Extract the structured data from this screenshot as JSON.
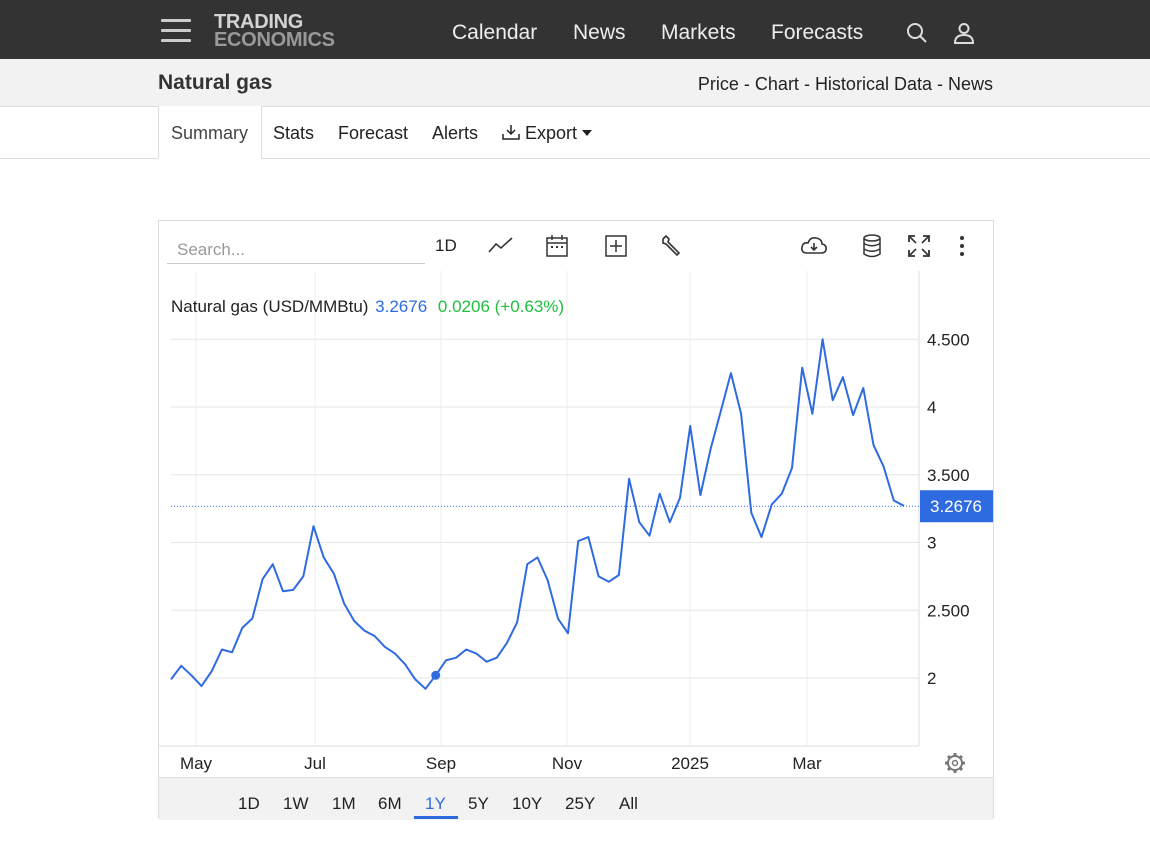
{
  "header": {
    "logo_line1": "TRADING",
    "logo_line2": "ECONOMICS",
    "nav": [
      "Calendar",
      "News",
      "Markets",
      "Forecasts"
    ]
  },
  "page": {
    "title": "Natural gas",
    "subnav": [
      "Price",
      "Chart",
      "Historical Data",
      "News"
    ],
    "separator": " - "
  },
  "tabs": [
    "Summary",
    "Stats",
    "Forecast",
    "Alerts",
    "Export"
  ],
  "toolbar": {
    "search_placeholder": "Search...",
    "interval": "1D"
  },
  "legend": {
    "name": "Natural gas (USD/MMBtu)",
    "price": "3.2676",
    "change": "0.0206 (+0.63%)"
  },
  "colors": {
    "line": "#2f6be0",
    "up": "#1fbf3f",
    "header_bg": "#333333"
  },
  "range_buttons": [
    "1D",
    "1W",
    "1M",
    "6M",
    "1Y",
    "5Y",
    "10Y",
    "25Y",
    "All"
  ],
  "range_active": "1Y",
  "chart_data": {
    "type": "line",
    "title": "Natural gas (USD/MMBtu)",
    "x_tick_labels": [
      "May",
      "Jul",
      "Sep",
      "Nov",
      "2025",
      "Mar"
    ],
    "y_tick_labels": [
      "4.500",
      "4",
      "3.500",
      "3",
      "2.500",
      "2"
    ],
    "ylim": [
      1.5,
      4.9
    ],
    "last_value_label": "3.2676",
    "grid": true,
    "series": [
      {
        "values": [
          1.99,
          2.09,
          2.02,
          1.94,
          2.05,
          2.21,
          2.19,
          2.37,
          2.44,
          2.73,
          2.84,
          2.64,
          2.65,
          2.75,
          3.12,
          2.89,
          2.77,
          2.55,
          2.42,
          2.35,
          2.31,
          2.23,
          2.18,
          2.1,
          1.99,
          1.92,
          2.02,
          2.13,
          2.15,
          2.21,
          2.18,
          2.12,
          2.15,
          2.26,
          2.41,
          2.84,
          2.89,
          2.72,
          2.44,
          2.33,
          3.01,
          3.04,
          2.75,
          2.71,
          2.76,
          3.47,
          3.15,
          3.05,
          3.36,
          3.15,
          3.33,
          3.86,
          3.35,
          3.69,
          3.97,
          4.25,
          3.95,
          3.22,
          3.04,
          3.28,
          3.36,
          3.55,
          4.29,
          3.95,
          4.5,
          4.05,
          4.22,
          3.94,
          4.14,
          3.72,
          3.56,
          3.31,
          3.27
        ]
      }
    ]
  }
}
